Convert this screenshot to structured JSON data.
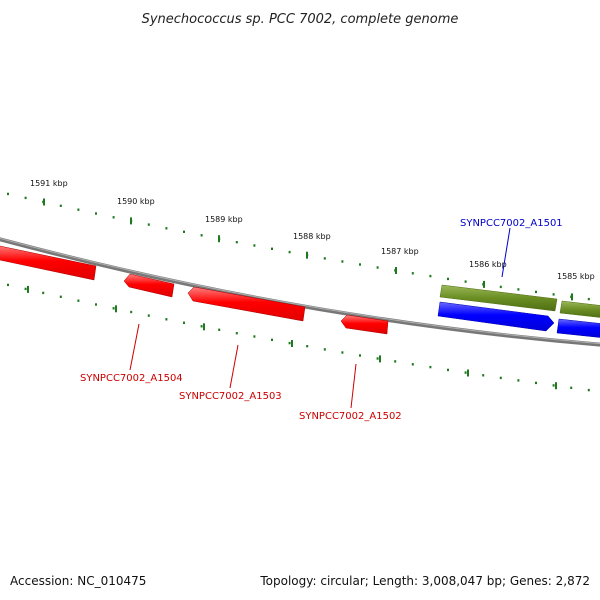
{
  "title": "Synechococcus sp. PCC 7002, complete genome",
  "footer": {
    "accession": "Accession: NC_010475",
    "summary": "Topology: circular; Length: 3,008,047 bp; Genes: 2,872"
  },
  "ticks": [
    "1591 kbp",
    "1590 kbp",
    "1589 kbp",
    "1588 kbp",
    "1587 kbp",
    "1586 kbp",
    "1585 kbp"
  ],
  "genes": [
    {
      "label": "SYNPCC7002_A1504",
      "strand": "reverse",
      "color": "#cc0000"
    },
    {
      "label": "SYNPCC7002_A1503",
      "strand": "reverse",
      "color": "#cc0000"
    },
    {
      "label": "SYNPCC7002_A1502",
      "strand": "reverse",
      "color": "#cc0000"
    },
    {
      "label": "SYNPCC7002_A1501",
      "strand": "forward",
      "color": "#0000cc"
    }
  ],
  "colors": {
    "backbone": "#777777",
    "reverse_gene": "#ff0000",
    "forward_gene": "#0000ff",
    "cds": "#6b8e23",
    "tick": "#1f7a1f"
  }
}
